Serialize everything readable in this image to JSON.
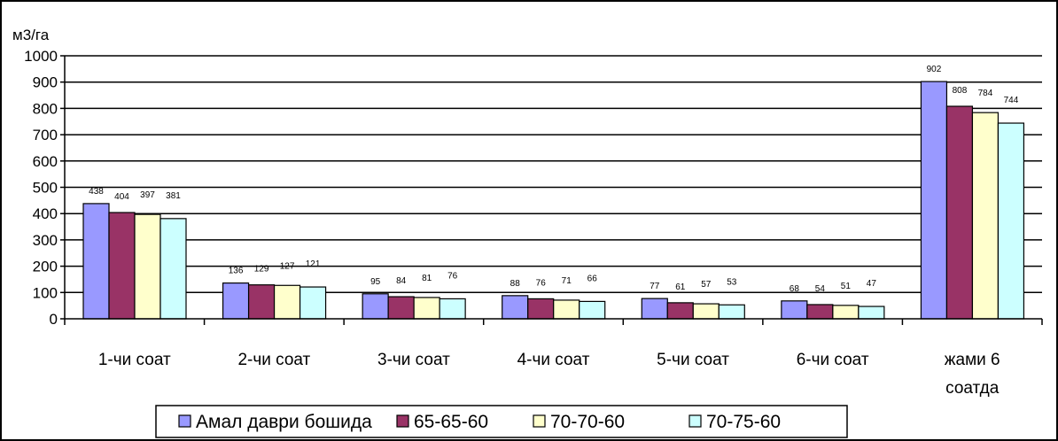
{
  "chart_data": {
    "type": "bar",
    "ylabel": "м3/га",
    "ylim": [
      0,
      1000
    ],
    "yticks": [
      0,
      100,
      200,
      300,
      400,
      500,
      600,
      700,
      800,
      900,
      1000
    ],
    "grid": true,
    "legend_position": "bottom",
    "categories": [
      [
        "1-чи соат"
      ],
      [
        "2-чи соат"
      ],
      [
        "3-чи соат"
      ],
      [
        "4-чи соат"
      ],
      [
        "5-чи соат"
      ],
      [
        "6-чи соат"
      ],
      [
        "жами 6",
        "соатда"
      ]
    ],
    "series": [
      {
        "name": "Амал даври бошида",
        "color": "#9999FF",
        "values": [
          438,
          136,
          95,
          88,
          77,
          68,
          902
        ]
      },
      {
        "name": "65-65-60",
        "color": "#993366",
        "values": [
          404,
          129,
          84,
          76,
          61,
          54,
          808
        ]
      },
      {
        "name": "70-70-60",
        "color": "#FFFFCC",
        "values": [
          397,
          127,
          81,
          71,
          57,
          51,
          784
        ]
      },
      {
        "name": "70-75-60",
        "color": "#CCFFFF",
        "values": [
          381,
          121,
          76,
          66,
          53,
          47,
          744
        ]
      }
    ]
  }
}
